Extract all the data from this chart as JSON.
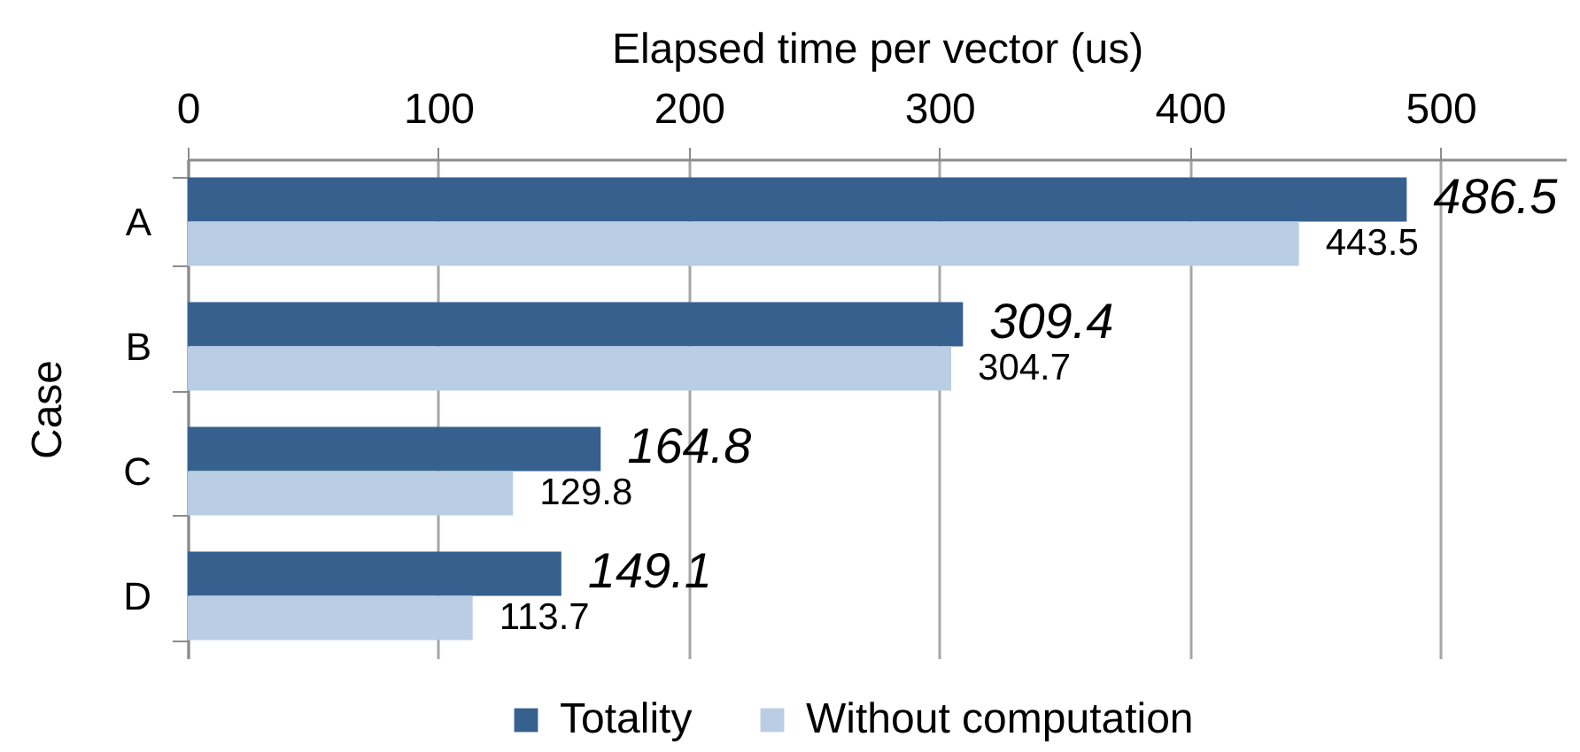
{
  "chart_data": {
    "type": "bar",
    "orientation": "horizontal",
    "xlabel": "Elapsed time per vector (us)",
    "ylabel": "Case",
    "categories": [
      "A",
      "B",
      "C",
      "D"
    ],
    "series": [
      {
        "name": "Totality",
        "color": "#36618f",
        "values": [
          486.5,
          309.4,
          164.8,
          149.1
        ]
      },
      {
        "name": "Without computation",
        "color": "#b9cde5",
        "values": [
          443.5,
          304.7,
          129.8,
          113.7
        ]
      }
    ],
    "xlim": [
      0,
      550
    ],
    "xticks": [
      0,
      100,
      200,
      300,
      400,
      500
    ],
    "grid": "x",
    "legend": "bottom",
    "data_labels": true
  }
}
